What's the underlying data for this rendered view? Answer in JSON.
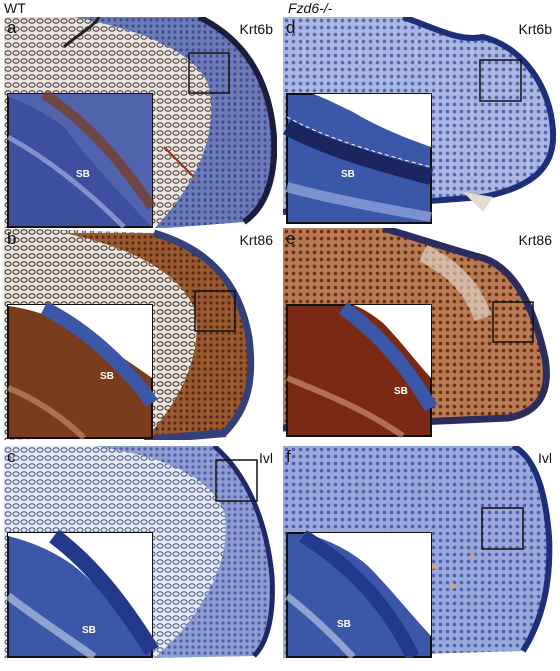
{
  "columns": {
    "left": "WT",
    "right": "Fzd6-/-"
  },
  "panels": [
    {
      "letter": "a",
      "marker": "Krt6b",
      "inset_label": "SB",
      "stain": "brown-blue"
    },
    {
      "letter": "b",
      "marker": "Krt86",
      "inset_label": "SB",
      "stain": "brown"
    },
    {
      "letter": "c",
      "marker": "Ivl",
      "inset_label": "SB",
      "stain": "blue"
    },
    {
      "letter": "d",
      "marker": "Krt6b",
      "inset_label": "SB",
      "stain": "blue"
    },
    {
      "letter": "e",
      "marker": "Krt86",
      "inset_label": "SB",
      "stain": "brown"
    },
    {
      "letter": "f",
      "marker": "Ivl",
      "inset_label": "SB",
      "stain": "blue"
    }
  ],
  "colors": {
    "stain_blue": "#3b57a8",
    "stain_brown": "#7a3b1c",
    "tissue_light": "#c9d3ea",
    "background": "#ffffff"
  }
}
